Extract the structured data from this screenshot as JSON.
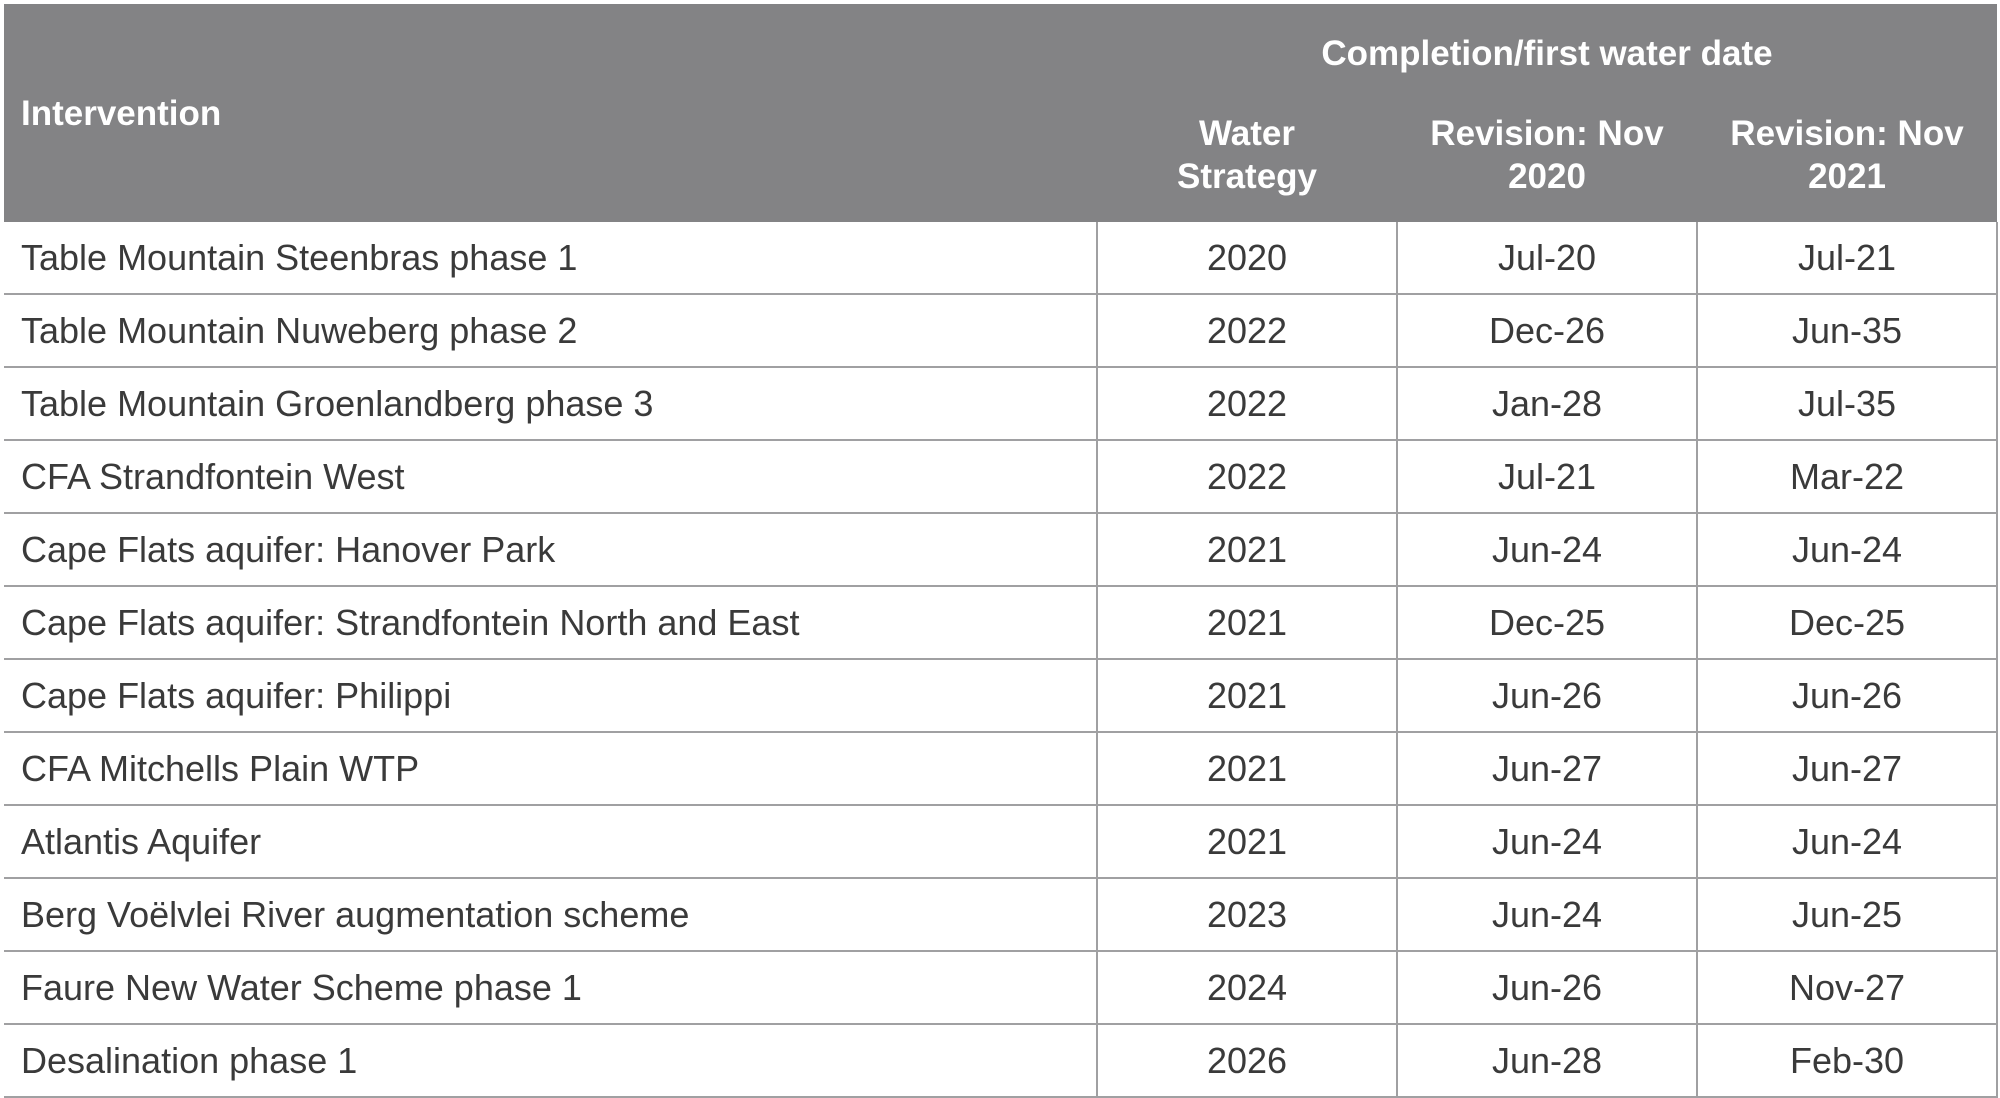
{
  "table": {
    "header": {
      "intervention": "Intervention",
      "group": "Completion/first water date",
      "col_water_strategy": "Water Strategy",
      "col_revision_2020": "Revision: Nov 2020",
      "col_revision_2021": "Revision: Nov 2021"
    },
    "rows": [
      {
        "name": "Table Mountain Steenbras phase 1",
        "water_strategy": "2020",
        "rev_2020": "Jul-20",
        "rev_2021": "Jul-21"
      },
      {
        "name": "Table Mountain Nuweberg phase 2",
        "water_strategy": "2022",
        "rev_2020": "Dec-26",
        "rev_2021": "Jun-35"
      },
      {
        "name": "Table Mountain Groenlandberg phase 3",
        "water_strategy": "2022",
        "rev_2020": "Jan-28",
        "rev_2021": "Jul-35"
      },
      {
        "name": "CFA Strandfontein West",
        "water_strategy": "2022",
        "rev_2020": "Jul-21",
        "rev_2021": "Mar-22"
      },
      {
        "name": "Cape Flats aquifer: Hanover Park",
        "water_strategy": "2021",
        "rev_2020": "Jun-24",
        "rev_2021": "Jun-24"
      },
      {
        "name": "Cape Flats aquifer: Strandfontein North and East",
        "water_strategy": "2021",
        "rev_2020": "Dec-25",
        "rev_2021": "Dec-25"
      },
      {
        "name": "Cape Flats aquifer: Philippi",
        "water_strategy": "2021",
        "rev_2020": "Jun-26",
        "rev_2021": "Jun-26"
      },
      {
        "name": "CFA Mitchells Plain WTP",
        "water_strategy": "2021",
        "rev_2020": "Jun-27",
        "rev_2021": "Jun-27"
      },
      {
        "name": "Atlantis Aquifer",
        "water_strategy": "2021",
        "rev_2020": "Jun-24",
        "rev_2021": "Jun-24"
      },
      {
        "name": "Berg Voëlvlei River augmentation scheme",
        "water_strategy": "2023",
        "rev_2020": "Jun-24",
        "rev_2021": "Jun-25"
      },
      {
        "name": "Faure New Water Scheme phase 1",
        "water_strategy": "2024",
        "rev_2020": "Jun-26",
        "rev_2021": "Nov-27"
      },
      {
        "name": "Desalination phase 1",
        "water_strategy": "2026",
        "rev_2020": "Jun-28",
        "rev_2021": "Feb-30"
      }
    ]
  },
  "colors": {
    "header_background": "#838385",
    "header_text": "#ffffff",
    "body_text": "#3a3a3a",
    "grid_lines": "#a0a0a2"
  }
}
